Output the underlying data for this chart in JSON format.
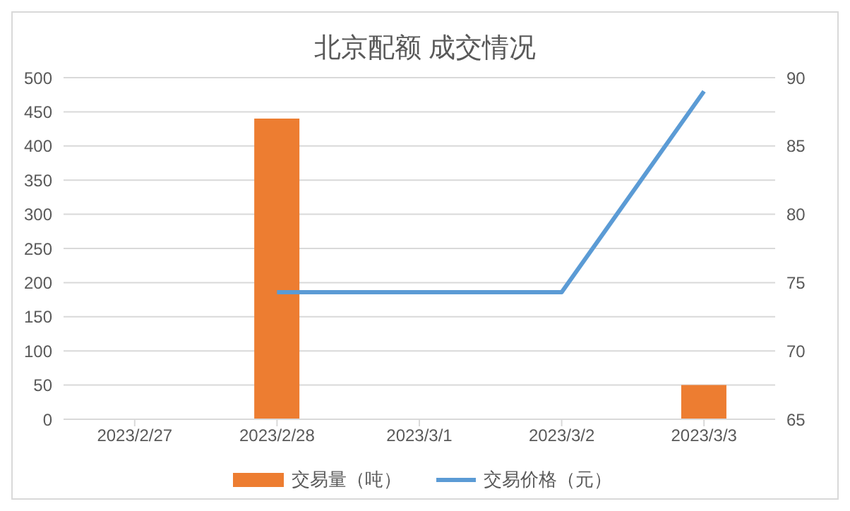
{
  "chart_data": {
    "type": "bar",
    "title": "北京配额 成交情况",
    "categories": [
      "2023/2/27",
      "2023/2/28",
      "2023/3/1",
      "2023/3/2",
      "2023/3/3"
    ],
    "series": [
      {
        "name": "交易量（吨）",
        "color": "#ed7d31",
        "values": [
          null,
          440,
          null,
          null,
          50
        ]
      },
      {
        "name": "交易价格（元）",
        "type": "line",
        "axis": "y2",
        "color": "#5b9bd5",
        "values": [
          null,
          74.3,
          74.3,
          74.3,
          89
        ]
      }
    ],
    "ylim": [
      0,
      500
    ],
    "yticks": [
      0,
      50,
      100,
      150,
      200,
      250,
      300,
      350,
      400,
      450,
      500
    ],
    "y2lim": [
      65,
      90
    ],
    "y2ticks": [
      65,
      70,
      75,
      80,
      85,
      90
    ],
    "grid": "y",
    "legend": "bottom",
    "marker": "none"
  }
}
